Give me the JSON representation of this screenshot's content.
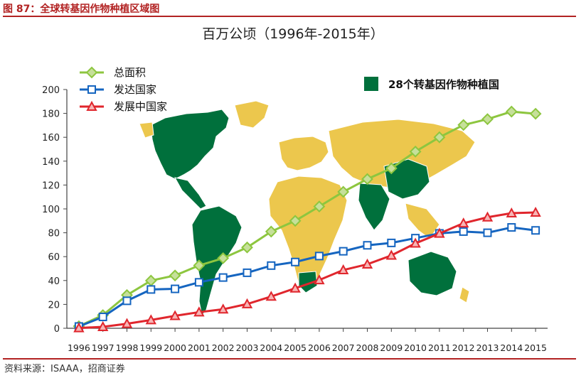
{
  "figure": {
    "label": "图 87：全球转基因作物种植区域图",
    "source": "资料来源：ISAAA，招商证券"
  },
  "colors": {
    "brand_red": "#b22222",
    "total": "#8dc63f",
    "developed": "#1565c0",
    "developing": "#e0262d",
    "gm_country": "#00703c",
    "non_gm_land": "#ecc74d"
  },
  "chart_data": {
    "type": "line",
    "title": "百万公顷（1996年-2015年）",
    "xlabel": "",
    "ylabel": "",
    "x": [
      "1996",
      "1997",
      "1998",
      "1999",
      "2000",
      "2001",
      "2002",
      "2003",
      "2004",
      "2005",
      "2006",
      "2007",
      "2008",
      "2009",
      "2010",
      "2011",
      "2012",
      "2013",
      "2014",
      "2015"
    ],
    "ylim": [
      0,
      200
    ],
    "yticks": [
      0,
      20,
      40,
      60,
      80,
      100,
      120,
      140,
      160,
      180,
      200
    ],
    "legend_position": "top-left",
    "grid": false,
    "series": [
      {
        "name": "总面积",
        "color": "#8dc63f",
        "marker": "diamond",
        "values": [
          1.7,
          11,
          27.8,
          39.9,
          44.2,
          52.6,
          58.7,
          67.7,
          81,
          90,
          102,
          114.3,
          125,
          134,
          148,
          160,
          170.3,
          175.2,
          181.5,
          179.7
        ]
      },
      {
        "name": "发达国家",
        "color": "#1565c0",
        "marker": "square",
        "values": [
          1.5,
          9.5,
          23,
          32.5,
          33,
          38.5,
          42.5,
          46.5,
          52.5,
          55.5,
          60.5,
          64.5,
          69.5,
          71.5,
          75.5,
          79.5,
          81,
          80,
          84.5,
          82
        ]
      },
      {
        "name": "发展中国家",
        "color": "#e0262d",
        "marker": "triangle",
        "values": [
          0.2,
          1.2,
          3.8,
          6.9,
          10.4,
          13.5,
          15.9,
          20.3,
          26.6,
          33.5,
          40.4,
          48.8,
          53.6,
          61,
          71.1,
          79.4,
          88,
          93,
          96.4,
          97
        ]
      }
    ],
    "annotation": "28个转基因作物种植国"
  }
}
